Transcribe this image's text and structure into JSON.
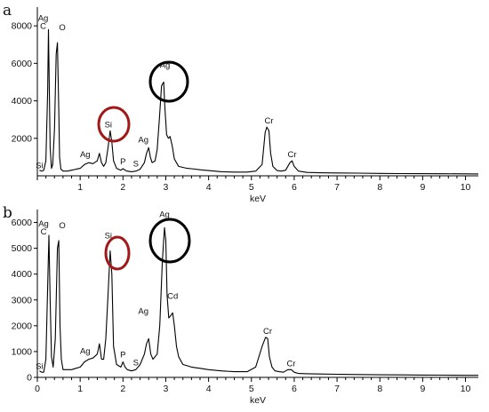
{
  "chart_data": [
    {
      "type": "line",
      "panel_label": "a",
      "xlabel": "keV",
      "ylabel": "",
      "xlim": [
        0,
        10.3
      ],
      "ylim": [
        0,
        9000
      ],
      "xticks": [
        "1",
        "2",
        "3",
        "4",
        "5",
        "6",
        "7",
        "8",
        "9",
        "10"
      ],
      "yticks": [
        "2000",
        "4000",
        "6000",
        "8000"
      ],
      "grid": false,
      "series": [
        {
          "x": [
            0.05,
            0.1,
            0.15,
            0.2,
            0.24,
            0.26,
            0.28,
            0.3,
            0.33,
            0.36,
            0.4,
            0.44,
            0.47,
            0.5,
            0.52,
            0.55,
            0.6,
            0.7,
            0.8,
            0.9,
            1.0,
            1.1,
            1.2,
            1.3,
            1.4,
            1.45,
            1.5,
            1.55,
            1.6,
            1.65,
            1.7,
            1.74,
            1.78,
            1.85,
            1.95,
            2.0,
            2.05,
            2.1,
            2.2,
            2.3,
            2.4,
            2.5,
            2.55,
            2.6,
            2.64,
            2.68,
            2.75,
            2.8,
            2.85,
            2.9,
            2.95,
            2.98,
            3.02,
            3.06,
            3.1,
            3.15,
            3.2,
            3.25,
            3.3,
            3.4,
            3.5,
            3.6,
            3.8,
            4.0,
            4.3,
            4.6,
            4.9,
            5.1,
            5.25,
            5.32,
            5.36,
            5.41,
            5.45,
            5.5,
            5.6,
            5.7,
            5.8,
            5.9,
            5.95,
            6.0,
            6.1,
            6.3,
            6.6,
            7.0,
            7.5,
            8.0,
            8.5,
            9.0,
            9.5,
            10.0,
            10.3
          ],
          "y": [
            300,
            250,
            300,
            800,
            4500,
            7800,
            4500,
            1500,
            400,
            600,
            2500,
            6500,
            7100,
            3500,
            1000,
            350,
            250,
            250,
            300,
            350,
            400,
            600,
            700,
            650,
            800,
            1200,
            700,
            500,
            700,
            1500,
            2400,
            1800,
            800,
            400,
            300,
            380,
            300,
            250,
            220,
            250,
            350,
            700,
            1200,
            1500,
            1000,
            700,
            800,
            1400,
            3000,
            4800,
            5000,
            3600,
            2200,
            2000,
            2100,
            1600,
            900,
            700,
            500,
            450,
            400,
            380,
            320,
            280,
            220,
            200,
            200,
            250,
            600,
            2300,
            2600,
            2400,
            1200,
            500,
            280,
            250,
            300,
            700,
            800,
            500,
            250,
            180,
            160,
            150,
            140,
            130,
            120,
            115,
            110,
            105,
            100
          ]
        }
      ],
      "annotations": [
        {
          "text": "Ag",
          "x": 0.26,
          "y": 7800
        },
        {
          "text": "C",
          "x": 0.26,
          "y": 7800
        },
        {
          "text": "O",
          "x": 0.5,
          "y": 7100
        },
        {
          "text": "Si",
          "x": 0.05,
          "y": 300
        },
        {
          "text": "Ag",
          "x": 1.2,
          "y": 700
        },
        {
          "text": "Si",
          "x": 1.74,
          "y": 2400
        },
        {
          "text": "P",
          "x": 2.0,
          "y": 380
        },
        {
          "text": "S",
          "x": 2.3,
          "y": 250
        },
        {
          "text": "Ag",
          "x": 2.6,
          "y": 1500
        },
        {
          "text": "Ag",
          "x": 2.98,
          "y": 5000
        },
        {
          "text": "Cr",
          "x": 5.41,
          "y": 2600
        },
        {
          "text": "Cr",
          "x": 5.95,
          "y": 800
        }
      ],
      "highlight_circles": [
        {
          "around": "Si",
          "color": "#a01818"
        },
        {
          "around": "Ag",
          "color": "#000000"
        }
      ]
    },
    {
      "type": "line",
      "panel_label": "b",
      "xlabel": "keV",
      "ylabel": "",
      "xlim": [
        0,
        10.3
      ],
      "ylim": [
        0,
        6500
      ],
      "xticks": [
        "0",
        "1",
        "2",
        "3",
        "4",
        "5",
        "6",
        "7",
        "8",
        "9",
        "10"
      ],
      "yticks": [
        "0",
        "1000",
        "2000",
        "3000",
        "4000",
        "5000",
        "6000"
      ],
      "grid": false,
      "series": [
        {
          "x": [
            0.05,
            0.1,
            0.15,
            0.2,
            0.24,
            0.27,
            0.3,
            0.33,
            0.37,
            0.42,
            0.47,
            0.5,
            0.53,
            0.56,
            0.6,
            0.7,
            0.8,
            0.9,
            1.0,
            1.1,
            1.2,
            1.3,
            1.4,
            1.45,
            1.5,
            1.55,
            1.6,
            1.65,
            1.7,
            1.74,
            1.78,
            1.85,
            1.95,
            2.0,
            2.05,
            2.1,
            2.2,
            2.3,
            2.4,
            2.5,
            2.55,
            2.6,
            2.65,
            2.7,
            2.8,
            2.86,
            2.92,
            2.97,
            3.0,
            3.03,
            3.07,
            3.12,
            3.16,
            3.2,
            3.25,
            3.3,
            3.4,
            3.5,
            3.6,
            3.8,
            4.0,
            4.3,
            4.6,
            4.9,
            5.1,
            5.25,
            5.33,
            5.38,
            5.42,
            5.48,
            5.55,
            5.65,
            5.75,
            5.85,
            5.93,
            6.0,
            6.1,
            6.3,
            6.6,
            7.0,
            7.5,
            8.0,
            8.5,
            9.0,
            9.5,
            10.0,
            10.3
          ],
          "y": [
            250,
            200,
            200,
            700,
            3500,
            5500,
            3000,
            800,
            400,
            1500,
            5000,
            5300,
            2000,
            700,
            300,
            300,
            300,
            350,
            400,
            600,
            700,
            750,
            900,
            1300,
            700,
            700,
            1500,
            3200,
            4900,
            4000,
            1200,
            500,
            400,
            600,
            400,
            300,
            250,
            300,
            500,
            900,
            1300,
            1500,
            900,
            700,
            900,
            2000,
            4500,
            5800,
            5300,
            3200,
            2300,
            2400,
            2500,
            2000,
            1200,
            800,
            500,
            450,
            400,
            350,
            300,
            250,
            220,
            220,
            400,
            1200,
            1550,
            1500,
            800,
            400,
            250,
            220,
            200,
            300,
            300,
            200,
            150,
            140,
            130,
            120,
            110,
            100,
            95,
            90,
            85,
            80,
            80
          ]
        }
      ],
      "annotations": [
        {
          "text": "Ag",
          "x": 0.27,
          "y": 5500
        },
        {
          "text": "C",
          "x": 0.27,
          "y": 5500
        },
        {
          "text": "O",
          "x": 0.5,
          "y": 5300
        },
        {
          "text": "Si",
          "x": 0.05,
          "y": 250
        },
        {
          "text": "Ag",
          "x": 1.2,
          "y": 700
        },
        {
          "text": "Si",
          "x": 1.74,
          "y": 4900
        },
        {
          "text": "P",
          "x": 2.0,
          "y": 600
        },
        {
          "text": "S",
          "x": 2.3,
          "y": 300
        },
        {
          "text": "Ag",
          "x": 2.6,
          "y": 1500
        },
        {
          "text": "Ag",
          "x": 2.97,
          "y": 5800
        },
        {
          "text": "Cd",
          "x": 3.16,
          "y": 2500
        },
        {
          "text": "Cr",
          "x": 5.38,
          "y": 1550
        },
        {
          "text": "Cr",
          "x": 5.93,
          "y": 300
        }
      ],
      "highlight_circles": [
        {
          "around": "Si",
          "color": "#a01818"
        },
        {
          "around": "Ag",
          "color": "#000000"
        }
      ]
    }
  ]
}
